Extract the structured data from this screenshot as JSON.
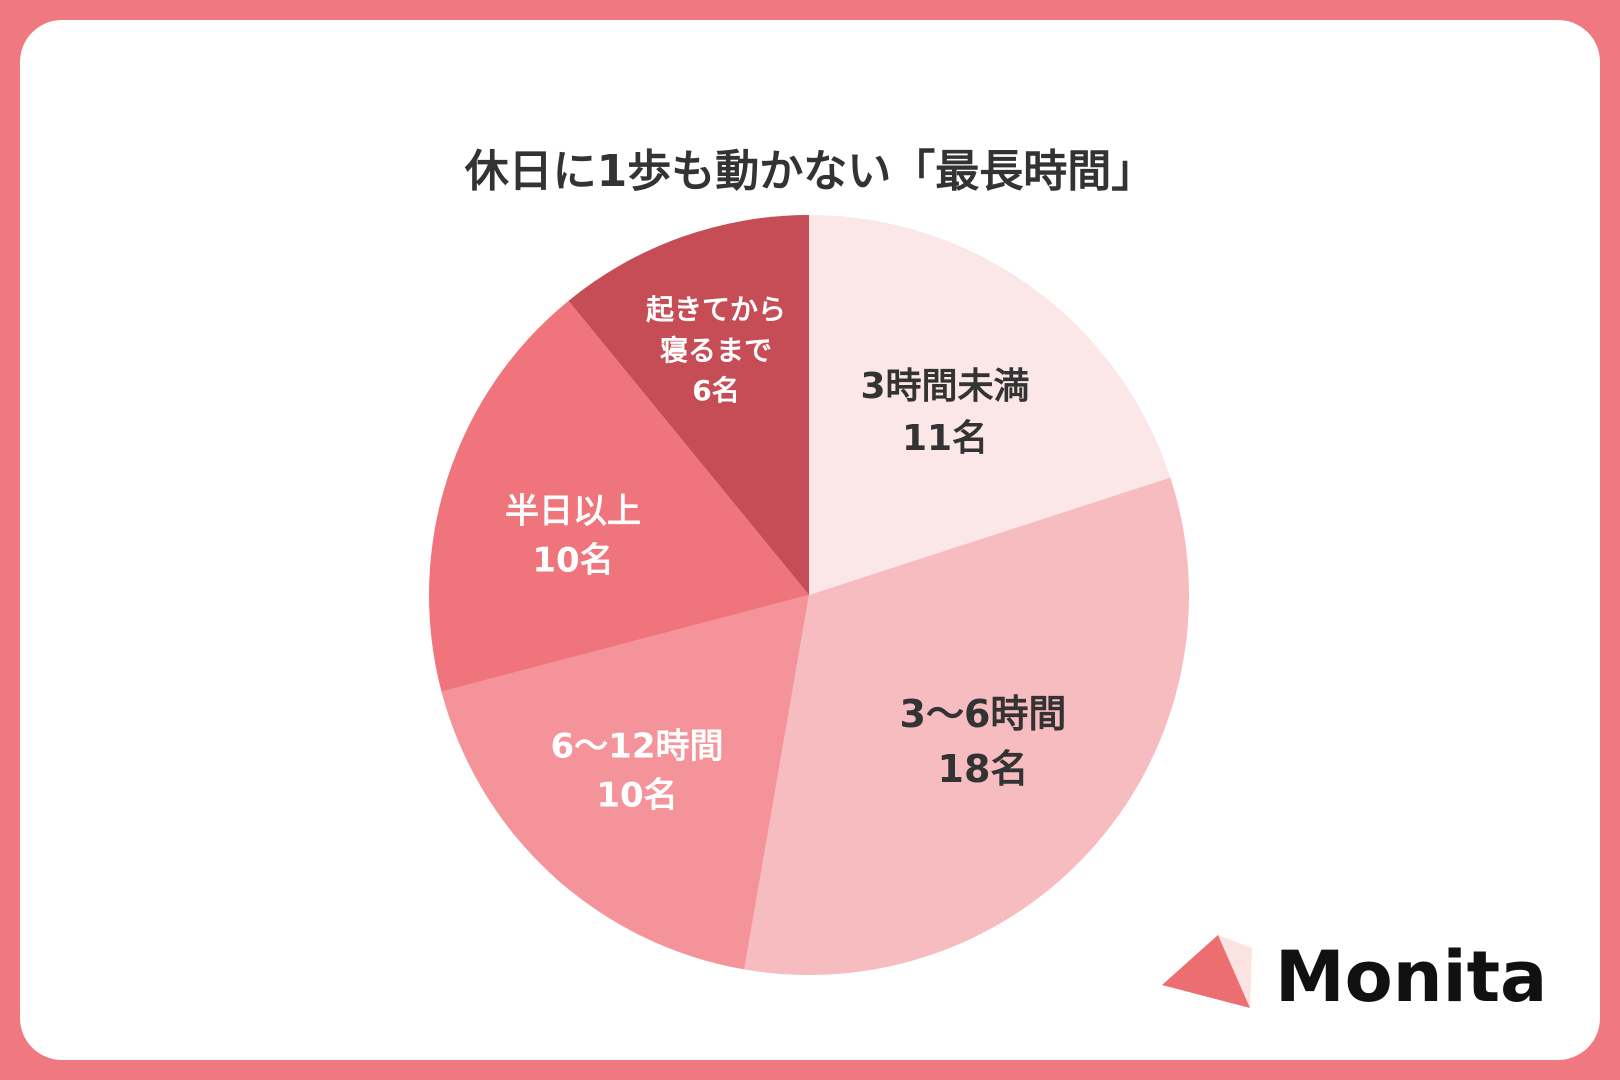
{
  "chart_data": {
    "type": "pie",
    "title": "休日に1歩も動かない「最長時間」",
    "categories": [
      "3時間未満",
      "3〜6時間",
      "6〜12時間",
      "半日以上",
      "起きてから寝るまで"
    ],
    "values": [
      11,
      18,
      10,
      10,
      6
    ],
    "value_labels": [
      "11名",
      "18名",
      "10名",
      "10名",
      "6名"
    ],
    "colors": [
      "#fbe6e8",
      "#f7bcc0",
      "#f4939a",
      "#ef747c",
      "#c64d56"
    ]
  },
  "logo": "Monita"
}
